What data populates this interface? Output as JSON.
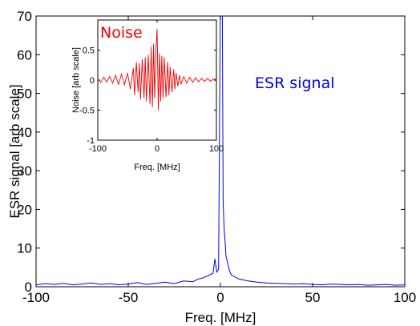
{
  "chart_data": [
    {
      "type": "line",
      "xlabel": "Freq. [MHz]",
      "ylabel": "ESR signal [arb scale]",
      "xlim": [
        -100,
        100
      ],
      "ylim": [
        0,
        70
      ],
      "xticks": [
        "-100",
        "-50",
        "0",
        "50",
        "100"
      ],
      "yticks": [
        "0",
        "10",
        "20",
        "30",
        "40",
        "50",
        "60",
        "70"
      ],
      "annotation": "ESR signal",
      "grid": false,
      "series": [
        {
          "color": "#0000ee",
          "x": [
            -100,
            -95,
            -90,
            -85,
            -80,
            -75,
            -70,
            -65,
            -60,
            -55,
            -50,
            -45,
            -40,
            -35,
            -30,
            -25,
            -20,
            -15,
            -12,
            -10,
            -8,
            -6,
            -4,
            -3,
            -2,
            -1,
            0,
            0.5,
            1,
            1.5,
            2,
            2.5,
            3,
            4,
            5,
            6,
            8,
            10,
            12,
            15,
            20,
            25,
            30,
            35,
            40,
            45,
            50,
            55,
            60,
            65,
            70,
            75,
            80,
            85,
            90,
            95,
            100
          ],
          "y": [
            0.5,
            0.8,
            0.6,
            0.9,
            0.5,
            0.7,
            1.0,
            0.6,
            0.8,
            0.5,
            0.7,
            1.1,
            0.6,
            0.9,
            1.2,
            0.8,
            1.5,
            1.3,
            2.0,
            2.2,
            2.6,
            3.0,
            3.5,
            7.2,
            3.8,
            4.5,
            75,
            75,
            75,
            22,
            15,
            12,
            8,
            6,
            4,
            3,
            2.5,
            2.0,
            1.8,
            1.5,
            1.2,
            1.0,
            0.9,
            0.8,
            0.7,
            0.8,
            0.6,
            0.5,
            0.7,
            0.6,
            0.5,
            0.6,
            0.4,
            0.5,
            0.6,
            0.4,
            0.5
          ]
        }
      ]
    },
    {
      "type": "line",
      "title": "Noise",
      "xlabel": "Freq. [MHz]",
      "ylabel": "Noise [arb scale]",
      "xlim": [
        -100,
        100
      ],
      "ylim": [
        -1,
        1
      ],
      "xticks": [
        "-100",
        "0",
        "100"
      ],
      "yticks": [
        "-1",
        "-0.5",
        "0",
        "0.5"
      ],
      "grid": false,
      "series": [
        {
          "color": "#ee0000",
          "x": [
            -100,
            -95,
            -90,
            -85,
            -80,
            -75,
            -70,
            -65,
            -60,
            -55,
            -50,
            -45,
            -40,
            -38,
            -35,
            -32,
            -30,
            -28,
            -25,
            -22,
            -20,
            -18,
            -15,
            -12,
            -10,
            -8,
            -6,
            -4,
            -2,
            0,
            2,
            4,
            6,
            8,
            10,
            12,
            15,
            18,
            20,
            22,
            25,
            28,
            30,
            32,
            35,
            38,
            40,
            45,
            50,
            55,
            60,
            65,
            70,
            75,
            80,
            85,
            90,
            95,
            100
          ],
          "y": [
            0.02,
            -0.04,
            0.05,
            -0.03,
            0.06,
            -0.05,
            0.08,
            -0.07,
            0.1,
            -0.08,
            0.12,
            -0.15,
            0.2,
            -0.25,
            0.3,
            -0.2,
            0.28,
            -0.32,
            0.35,
            -0.3,
            0.38,
            -0.35,
            0.42,
            -0.4,
            0.55,
            -0.45,
            0.6,
            -0.3,
            0.5,
            0.85,
            -0.5,
            0.45,
            -0.35,
            0.4,
            -0.3,
            0.38,
            -0.28,
            0.3,
            -0.25,
            0.22,
            -0.2,
            0.18,
            -0.15,
            0.12,
            -0.1,
            0.08,
            -0.07,
            0.06,
            -0.05,
            0.05,
            -0.04,
            0.04,
            -0.03,
            0.03,
            -0.02,
            0.03,
            -0.02,
            0.02,
            0.01
          ]
        }
      ]
    }
  ]
}
